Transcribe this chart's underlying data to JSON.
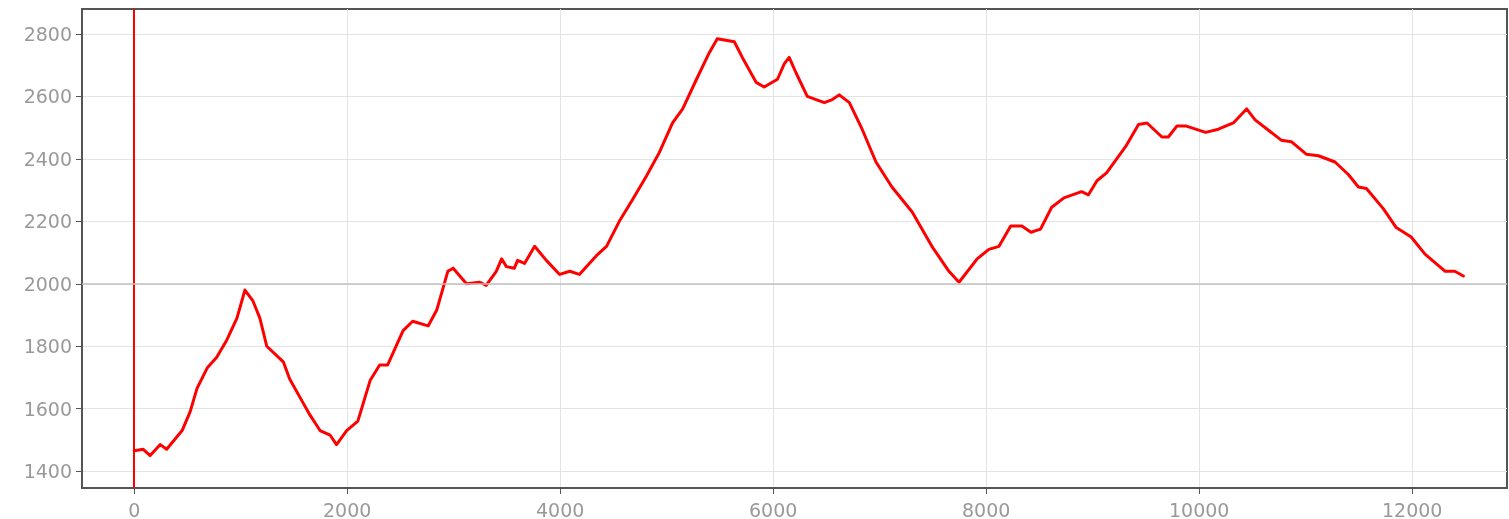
{
  "chart_data": {
    "type": "line",
    "xlim": [
      -490,
      12890
    ],
    "ylim": [
      1346,
      2880
    ],
    "xticks": [
      0,
      2000,
      4000,
      6000,
      8000,
      10000,
      12000
    ],
    "yticks": [
      1400,
      1600,
      1800,
      2000,
      2200,
      2400,
      2600,
      2800
    ],
    "grid": true,
    "marker": "none",
    "line_style": "solid",
    "ref_lines": [
      {
        "axis": "x",
        "value": 0,
        "color": "#ff0000"
      },
      {
        "axis": "y",
        "value": 2000,
        "color": "#c0c0c0"
      }
    ],
    "series": [
      {
        "color": "#ff0000",
        "x": [
          0,
          85,
          150,
          245,
          305,
          450,
          525,
          590,
          685,
          775,
          870,
          965,
          1040,
          1115,
          1180,
          1245,
          1400,
          1460,
          1575,
          1650,
          1745,
          1840,
          1900,
          1995,
          2100,
          2215,
          2305,
          2380,
          2525,
          2615,
          2760,
          2840,
          2945,
          2995,
          3120,
          3245,
          3305,
          3400,
          3450,
          3495,
          3570,
          3600,
          3665,
          3760,
          3870,
          3995,
          4090,
          4180,
          4340,
          4435,
          4555,
          4680,
          4810,
          4930,
          5055,
          5150,
          5280,
          5400,
          5475,
          5635,
          5710,
          5840,
          5915,
          6040,
          6105,
          6150,
          6215,
          6320,
          6480,
          6555,
          6620,
          6715,
          6835,
          6965,
          7115,
          7305,
          7490,
          7650,
          7745,
          7915,
          8025,
          8120,
          8230,
          8335,
          8420,
          8510,
          8615,
          8730,
          8895,
          8960,
          9040,
          9130,
          9310,
          9430,
          9510,
          9650,
          9710,
          9790,
          9880,
          10060,
          10180,
          10320,
          10445,
          10525,
          10770,
          10865,
          11005,
          11120,
          11275,
          11400,
          11495,
          11570,
          11730,
          11850,
          11990,
          12120,
          12310,
          12400,
          12480
        ],
        "values": [
          1465,
          1470,
          1450,
          1485,
          1470,
          1530,
          1590,
          1665,
          1730,
          1765,
          1820,
          1890,
          1980,
          1945,
          1890,
          1800,
          1750,
          1695,
          1625,
          1580,
          1530,
          1515,
          1485,
          1530,
          1560,
          1690,
          1740,
          1740,
          1850,
          1880,
          1865,
          1915,
          2040,
          2050,
          2000,
          2005,
          1995,
          2040,
          2080,
          2055,
          2050,
          2075,
          2065,
          2120,
          2075,
          2030,
          2040,
          2030,
          2090,
          2120,
          2200,
          2270,
          2345,
          2420,
          2515,
          2560,
          2655,
          2740,
          2785,
          2775,
          2725,
          2645,
          2630,
          2655,
          2705,
          2725,
          2675,
          2600,
          2580,
          2590,
          2605,
          2580,
          2495,
          2390,
          2310,
          2230,
          2120,
          2040,
          2005,
          2080,
          2110,
          2120,
          2185,
          2185,
          2165,
          2175,
          2245,
          2275,
          2295,
          2285,
          2330,
          2355,
          2440,
          2510,
          2515,
          2470,
          2470,
          2505,
          2505,
          2485,
          2495,
          2515,
          2560,
          2525,
          2460,
          2455,
          2415,
          2410,
          2390,
          2350,
          2310,
          2305,
          2240,
          2180,
          2150,
          2095,
          2040,
          2040,
          2025
        ]
      }
    ]
  }
}
